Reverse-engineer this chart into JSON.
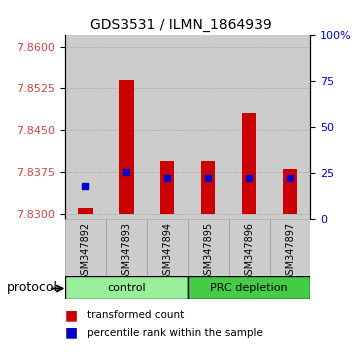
{
  "title": "GDS3531 / ILMN_1864939",
  "samples": [
    "GSM347892",
    "GSM347893",
    "GSM347894",
    "GSM347895",
    "GSM347896",
    "GSM347897"
  ],
  "bar_values": [
    7.831,
    7.854,
    7.8395,
    7.8395,
    7.848,
    7.838
  ],
  "bar_base": 7.83,
  "blue_marker_values": [
    7.835,
    7.8375,
    7.8365,
    7.8365,
    7.8365,
    7.8365
  ],
  "bar_color": "#cc0000",
  "marker_color": "#0000cc",
  "ylim_left": [
    7.829,
    7.862
  ],
  "yticks_left": [
    7.83,
    7.8375,
    7.845,
    7.8525,
    7.86
  ],
  "yticks_right_vals": [
    0,
    25,
    50,
    75,
    100
  ],
  "yticks_right_labels": [
    "0",
    "25",
    "50",
    "75",
    "100%"
  ],
  "left_tick_color": "#cc4444",
  "right_tick_color": "#0000cc",
  "groups": [
    {
      "label": "control",
      "samples": [
        0,
        1,
        2
      ],
      "color": "#99ee99"
    },
    {
      "label": "PRC depletion",
      "samples": [
        3,
        4,
        5
      ],
      "color": "#44cc44"
    }
  ],
  "protocol_label": "protocol",
  "legend_items": [
    {
      "color": "#cc0000",
      "marker": "s",
      "label": "transformed count"
    },
    {
      "color": "#0000cc",
      "marker": "s",
      "label": "percentile rank within the sample"
    }
  ],
  "grid_color": "#888888",
  "bg_color": "#ffffff",
  "bar_bg_color": "#cccccc"
}
